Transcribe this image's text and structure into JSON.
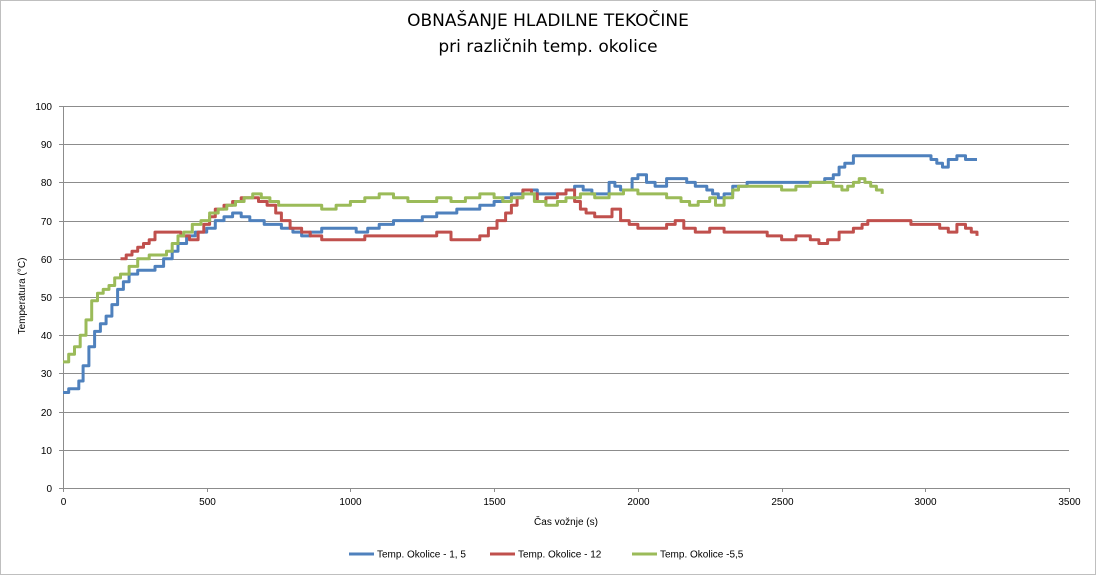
{
  "chart_data": {
    "type": "line",
    "title": "OBNAŠANJE HLADILNE TEKOČINE",
    "subtitle": "pri različnih temp. okolice",
    "xlabel": "Čas vožnje  (s)",
    "ylabel": "Temperatura (°C)",
    "xlim": [
      0,
      3500
    ],
    "ylim": [
      0,
      100
    ],
    "xticks": [
      "0",
      "500",
      "1000",
      "1500",
      "2000",
      "2500",
      "3000",
      "3500"
    ],
    "yticks": [
      "0",
      "10",
      "20",
      "30",
      "40",
      "50",
      "60",
      "70",
      "80",
      "90",
      "100"
    ],
    "grid": "horizontal",
    "legend_position": "bottom",
    "series": [
      {
        "name": "Temp. Okolice - 1, 5",
        "color": "#4f81bd",
        "points": [
          [
            0,
            25
          ],
          [
            20,
            26
          ],
          [
            40,
            26
          ],
          [
            55,
            28
          ],
          [
            70,
            32
          ],
          [
            90,
            37
          ],
          [
            110,
            41
          ],
          [
            130,
            43
          ],
          [
            150,
            45
          ],
          [
            170,
            48
          ],
          [
            190,
            52
          ],
          [
            210,
            54
          ],
          [
            230,
            56
          ],
          [
            260,
            57
          ],
          [
            300,
            57
          ],
          [
            320,
            58
          ],
          [
            350,
            60
          ],
          [
            380,
            62
          ],
          [
            400,
            64
          ],
          [
            430,
            66
          ],
          [
            460,
            67
          ],
          [
            500,
            68
          ],
          [
            530,
            70
          ],
          [
            560,
            71
          ],
          [
            590,
            72
          ],
          [
            620,
            71
          ],
          [
            650,
            70
          ],
          [
            700,
            69
          ],
          [
            760,
            68
          ],
          [
            800,
            67
          ],
          [
            830,
            66
          ],
          [
            860,
            67
          ],
          [
            900,
            68
          ],
          [
            950,
            68
          ],
          [
            980,
            68
          ],
          [
            1020,
            67
          ],
          [
            1060,
            68
          ],
          [
            1100,
            69
          ],
          [
            1150,
            70
          ],
          [
            1200,
            70
          ],
          [
            1250,
            71
          ],
          [
            1300,
            72
          ],
          [
            1350,
            72
          ],
          [
            1370,
            73
          ],
          [
            1420,
            73
          ],
          [
            1450,
            74
          ],
          [
            1480,
            74
          ],
          [
            1500,
            75
          ],
          [
            1530,
            76
          ],
          [
            1560,
            77
          ],
          [
            1600,
            78
          ],
          [
            1650,
            77
          ],
          [
            1700,
            77
          ],
          [
            1750,
            78
          ],
          [
            1780,
            79
          ],
          [
            1810,
            78
          ],
          [
            1840,
            77
          ],
          [
            1870,
            77
          ],
          [
            1900,
            80
          ],
          [
            1920,
            79
          ],
          [
            1940,
            78
          ],
          [
            1980,
            81
          ],
          [
            2000,
            82
          ],
          [
            2030,
            80
          ],
          [
            2060,
            79
          ],
          [
            2100,
            81
          ],
          [
            2140,
            81
          ],
          [
            2170,
            80
          ],
          [
            2200,
            79
          ],
          [
            2240,
            78
          ],
          [
            2260,
            77
          ],
          [
            2280,
            76
          ],
          [
            2300,
            77
          ],
          [
            2330,
            79
          ],
          [
            2380,
            80
          ],
          [
            2450,
            80
          ],
          [
            2500,
            80
          ],
          [
            2550,
            80
          ],
          [
            2600,
            80
          ],
          [
            2650,
            81
          ],
          [
            2680,
            82
          ],
          [
            2700,
            84
          ],
          [
            2720,
            85
          ],
          [
            2750,
            87
          ],
          [
            2800,
            87
          ],
          [
            2900,
            87
          ],
          [
            2980,
            87
          ],
          [
            3020,
            86
          ],
          [
            3040,
            85
          ],
          [
            3060,
            84
          ],
          [
            3080,
            86
          ],
          [
            3110,
            87
          ],
          [
            3140,
            86
          ],
          [
            3180,
            86
          ]
        ]
      },
      {
        "name": "Temp. Okolice - 12",
        "color": "#c0504d",
        "points": [
          [
            200,
            60
          ],
          [
            220,
            61
          ],
          [
            240,
            62
          ],
          [
            260,
            63
          ],
          [
            280,
            64
          ],
          [
            300,
            65
          ],
          [
            320,
            67
          ],
          [
            350,
            67
          ],
          [
            380,
            67
          ],
          [
            410,
            66
          ],
          [
            440,
            65
          ],
          [
            470,
            67
          ],
          [
            490,
            69
          ],
          [
            510,
            71
          ],
          [
            530,
            73
          ],
          [
            560,
            74
          ],
          [
            590,
            75
          ],
          [
            620,
            76
          ],
          [
            650,
            76
          ],
          [
            680,
            75
          ],
          [
            710,
            74
          ],
          [
            740,
            72
          ],
          [
            760,
            70
          ],
          [
            790,
            68
          ],
          [
            830,
            67
          ],
          [
            860,
            66
          ],
          [
            900,
            65
          ],
          [
            950,
            65
          ],
          [
            1000,
            65
          ],
          [
            1050,
            66
          ],
          [
            1100,
            66
          ],
          [
            1150,
            66
          ],
          [
            1200,
            66
          ],
          [
            1250,
            66
          ],
          [
            1300,
            67
          ],
          [
            1350,
            65
          ],
          [
            1400,
            65
          ],
          [
            1450,
            66
          ],
          [
            1480,
            68
          ],
          [
            1510,
            70
          ],
          [
            1540,
            72
          ],
          [
            1560,
            74
          ],
          [
            1580,
            76
          ],
          [
            1600,
            78
          ],
          [
            1630,
            77
          ],
          [
            1650,
            75
          ],
          [
            1680,
            76
          ],
          [
            1720,
            77
          ],
          [
            1750,
            78
          ],
          [
            1780,
            75
          ],
          [
            1800,
            73
          ],
          [
            1820,
            72
          ],
          [
            1850,
            71
          ],
          [
            1880,
            71
          ],
          [
            1910,
            73
          ],
          [
            1940,
            70
          ],
          [
            1970,
            69
          ],
          [
            2000,
            68
          ],
          [
            2050,
            68
          ],
          [
            2100,
            69
          ],
          [
            2130,
            70
          ],
          [
            2160,
            68
          ],
          [
            2200,
            67
          ],
          [
            2250,
            68
          ],
          [
            2300,
            67
          ],
          [
            2350,
            67
          ],
          [
            2400,
            67
          ],
          [
            2450,
            66
          ],
          [
            2500,
            65
          ],
          [
            2550,
            66
          ],
          [
            2600,
            65
          ],
          [
            2630,
            64
          ],
          [
            2660,
            65
          ],
          [
            2700,
            67
          ],
          [
            2750,
            68
          ],
          [
            2780,
            69
          ],
          [
            2800,
            70
          ],
          [
            2850,
            70
          ],
          [
            2900,
            70
          ],
          [
            2950,
            69
          ],
          [
            3000,
            69
          ],
          [
            3050,
            68
          ],
          [
            3080,
            67
          ],
          [
            3110,
            69
          ],
          [
            3140,
            68
          ],
          [
            3160,
            67
          ],
          [
            3180,
            66
          ]
        ]
      },
      {
        "name": "Temp. Okolice -5,5",
        "color": "#9bbb59",
        "points": [
          [
            0,
            33
          ],
          [
            20,
            35
          ],
          [
            40,
            37
          ],
          [
            60,
            40
          ],
          [
            80,
            44
          ],
          [
            100,
            49
          ],
          [
            120,
            51
          ],
          [
            140,
            52
          ],
          [
            160,
            53
          ],
          [
            180,
            55
          ],
          [
            200,
            56
          ],
          [
            230,
            58
          ],
          [
            260,
            60
          ],
          [
            300,
            61
          ],
          [
            330,
            61
          ],
          [
            360,
            62
          ],
          [
            380,
            64
          ],
          [
            400,
            66
          ],
          [
            420,
            67
          ],
          [
            450,
            69
          ],
          [
            480,
            70
          ],
          [
            510,
            72
          ],
          [
            540,
            73
          ],
          [
            570,
            74
          ],
          [
            600,
            75
          ],
          [
            630,
            76
          ],
          [
            660,
            77
          ],
          [
            690,
            76
          ],
          [
            720,
            75
          ],
          [
            750,
            74
          ],
          [
            800,
            74
          ],
          [
            850,
            74
          ],
          [
            900,
            73
          ],
          [
            950,
            74
          ],
          [
            1000,
            75
          ],
          [
            1050,
            76
          ],
          [
            1100,
            77
          ],
          [
            1150,
            76
          ],
          [
            1200,
            75
          ],
          [
            1250,
            75
          ],
          [
            1300,
            76
          ],
          [
            1350,
            75
          ],
          [
            1400,
            76
          ],
          [
            1450,
            77
          ],
          [
            1500,
            76
          ],
          [
            1530,
            75
          ],
          [
            1560,
            76
          ],
          [
            1600,
            77
          ],
          [
            1640,
            75
          ],
          [
            1680,
            74
          ],
          [
            1720,
            75
          ],
          [
            1750,
            76
          ],
          [
            1800,
            77
          ],
          [
            1850,
            76
          ],
          [
            1900,
            77
          ],
          [
            1950,
            78
          ],
          [
            2000,
            77
          ],
          [
            2050,
            77
          ],
          [
            2100,
            76
          ],
          [
            2150,
            75
          ],
          [
            2180,
            74
          ],
          [
            2210,
            75
          ],
          [
            2250,
            76
          ],
          [
            2270,
            74
          ],
          [
            2300,
            76
          ],
          [
            2330,
            78
          ],
          [
            2350,
            79
          ],
          [
            2400,
            79
          ],
          [
            2450,
            79
          ],
          [
            2500,
            78
          ],
          [
            2550,
            79
          ],
          [
            2600,
            80
          ],
          [
            2650,
            80
          ],
          [
            2680,
            79
          ],
          [
            2710,
            78
          ],
          [
            2730,
            79
          ],
          [
            2750,
            80
          ],
          [
            2770,
            81
          ],
          [
            2790,
            80
          ],
          [
            2810,
            79
          ],
          [
            2830,
            78
          ],
          [
            2850,
            77
          ]
        ]
      }
    ]
  }
}
